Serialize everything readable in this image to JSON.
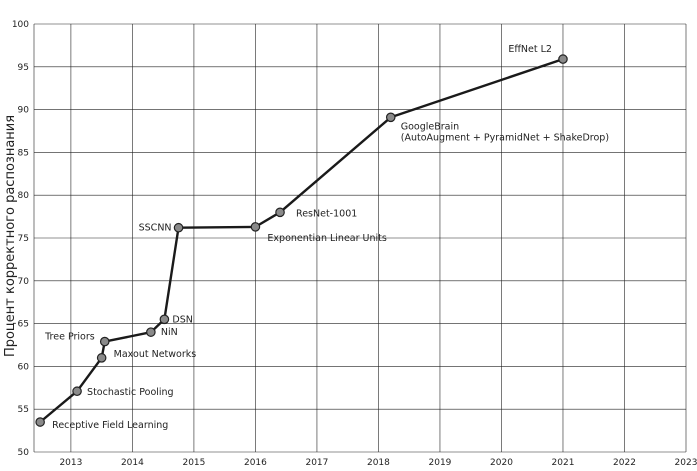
{
  "chart_data": {
    "type": "line",
    "xlabel": "",
    "ylabel": "Процент корректного распознания",
    "xlim": [
      2012.4,
      2023.0
    ],
    "ylim": [
      50,
      100
    ],
    "x_ticks": [
      "2013",
      "2014",
      "2015",
      "2016",
      "2017",
      "2018",
      "2019",
      "2020",
      "2021",
      "2022",
      "2023"
    ],
    "x_tick_values": [
      2013,
      2014,
      2015,
      2016,
      2017,
      2018,
      2019,
      2020,
      2021,
      2022,
      2023
    ],
    "y_ticks": [
      "50",
      "55",
      "60",
      "65",
      "70",
      "75",
      "80",
      "85",
      "90",
      "95",
      "100"
    ],
    "y_tick_values": [
      50,
      55,
      60,
      65,
      70,
      75,
      80,
      85,
      90,
      95,
      100
    ],
    "grid": true,
    "series": [
      {
        "points": [
          {
            "x": 2012.5,
            "y": 53.5,
            "label": "Receptive Field Learning"
          },
          {
            "x": 2013.1,
            "y": 57.1,
            "label": "Stochastic Pooling"
          },
          {
            "x": 2013.5,
            "y": 61.0,
            "label": "Maxout Networks"
          },
          {
            "x": 2013.55,
            "y": 62.9,
            "label": "Tree Priors"
          },
          {
            "x": 2014.3,
            "y": 64.0,
            "label": "NiN"
          },
          {
            "x": 2014.52,
            "y": 65.5,
            "label": "DSN"
          },
          {
            "x": 2014.75,
            "y": 76.2,
            "label": "SSCNN"
          },
          {
            "x": 2016.0,
            "y": 76.3,
            "label": "Exponentian Linear Units"
          },
          {
            "x": 2016.4,
            "y": 78.0,
            "label": "ResNet-1001"
          },
          {
            "x": 2018.2,
            "y": 89.1,
            "label": "GoogleBrain\n(AutoAugment + PyramidNet + ShakeDrop)"
          },
          {
            "x": 2021.0,
            "y": 95.9,
            "label": "EffNet L2"
          }
        ]
      }
    ]
  }
}
